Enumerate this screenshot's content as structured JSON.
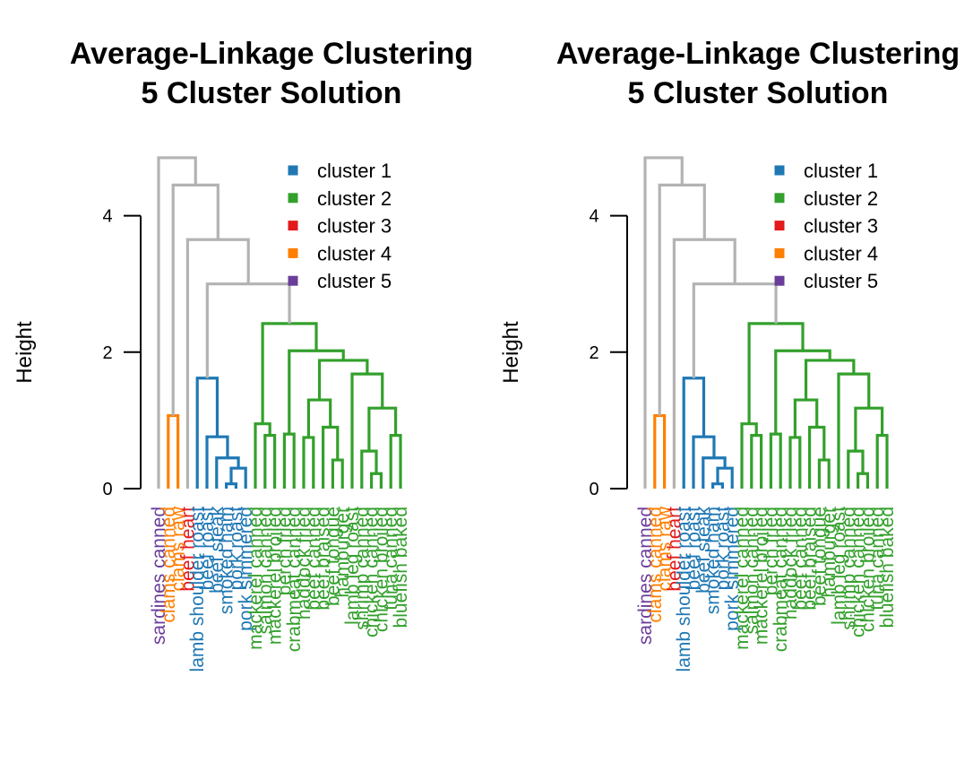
{
  "chart_data": [
    {
      "type": "dendrogram",
      "title": "Average-Linkage Clustering",
      "subtitle": "5 Cluster Solution",
      "ylabel": "Height",
      "yticks": [
        0,
        2,
        4
      ],
      "ylim": [
        0,
        4.8
      ],
      "legend_position": "top-right",
      "legend": [
        {
          "label": "cluster 1",
          "color": "#1F78B4"
        },
        {
          "label": "cluster 2",
          "color": "#33A02C"
        },
        {
          "label": "cluster 3",
          "color": "#E31A1C"
        },
        {
          "label": "cluster 4",
          "color": "#FF7F00"
        },
        {
          "label": "cluster 5",
          "color": "#6A3D9A"
        }
      ],
      "upper_branch_color": "#B3B3B3",
      "leaves": [
        {
          "label": "sardines canned",
          "cluster": 5
        },
        {
          "label": "clams canned",
          "cluster": 4
        },
        {
          "label": "clams raw",
          "cluster": 4
        },
        {
          "label": "beef heart",
          "cluster": 3
        },
        {
          "label": "lamb shoulder roast",
          "cluster": 1
        },
        {
          "label": "beef roast",
          "cluster": 1
        },
        {
          "label": "beef steak",
          "cluster": 1
        },
        {
          "label": "smoked ham",
          "cluster": 1
        },
        {
          "label": "pork roast",
          "cluster": 1
        },
        {
          "label": "pork simmered",
          "cluster": 1
        },
        {
          "label": "mackerel canned",
          "cluster": 2
        },
        {
          "label": "salmon canned",
          "cluster": 2
        },
        {
          "label": "mackerel broiled",
          "cluster": 2
        },
        {
          "label": "perch fried",
          "cluster": 2
        },
        {
          "label": "crabmeat canned",
          "cluster": 2
        },
        {
          "label": "haddock fried",
          "cluster": 2
        },
        {
          "label": "beef canned",
          "cluster": 2
        },
        {
          "label": "beef braised",
          "cluster": 2
        },
        {
          "label": "beef tongue",
          "cluster": 2
        },
        {
          "label": "hamburger",
          "cluster": 2
        },
        {
          "label": "lamb leg roast",
          "cluster": 2
        },
        {
          "label": "shrimp canned",
          "cluster": 2
        },
        {
          "label": "chicken canned",
          "cluster": 2
        },
        {
          "label": "chicken broiled",
          "cluster": 2
        },
        {
          "label": "tuna canned",
          "cluster": 2
        },
        {
          "label": "bluefish baked",
          "cluster": 2
        }
      ],
      "merges": [
        {
          "left": {
            "leaf": 7
          },
          "right": {
            "leaf": 8
          },
          "height": 0.07
        },
        {
          "left": {
            "merge": 0
          },
          "right": {
            "leaf": 9
          },
          "height": 0.3
        },
        {
          "left": {
            "leaf": 6
          },
          "right": {
            "merge": 1
          },
          "height": 0.45
        },
        {
          "left": {
            "leaf": 5
          },
          "right": {
            "merge": 2
          },
          "height": 0.76
        },
        {
          "left": {
            "leaf": 4
          },
          "right": {
            "merge": 3
          },
          "height": 1.62
        },
        {
          "left": {
            "leaf": 1
          },
          "right": {
            "leaf": 2
          },
          "height": 1.07
        },
        {
          "left": {
            "leaf": 22
          },
          "right": {
            "leaf": 23
          },
          "height": 0.22
        },
        {
          "left": {
            "leaf": 18
          },
          "right": {
            "leaf": 19
          },
          "height": 0.42
        },
        {
          "left": {
            "leaf": 24
          },
          "right": {
            "leaf": 25
          },
          "height": 0.78
        },
        {
          "left": {
            "leaf": 17
          },
          "right": {
            "merge": 7
          },
          "height": 0.9
        },
        {
          "left": {
            "leaf": 11
          },
          "right": {
            "leaf": 12
          },
          "height": 0.78
        },
        {
          "left": {
            "leaf": 13
          },
          "right": {
            "leaf": 14
          },
          "height": 0.8
        },
        {
          "left": {
            "leaf": 15
          },
          "right": {
            "leaf": 16
          },
          "height": 0.75
        },
        {
          "left": {
            "leaf": 10
          },
          "right": {
            "merge": 10
          },
          "height": 0.95
        },
        {
          "left": {
            "merge": 12
          },
          "right": {
            "merge": 9
          },
          "height": 1.3
        },
        {
          "left": {
            "leaf": 21
          },
          "right": {
            "merge": 6
          },
          "height": 0.55
        },
        {
          "left": {
            "merge": 8
          },
          "right": {
            "merge": 15
          },
          "height": 1.18
        },
        {
          "left": {
            "leaf": 20
          },
          "right": {
            "merge": 16
          },
          "height": 1.68
        },
        {
          "left": {
            "merge": 14
          },
          "right": {
            "merge": 17
          },
          "height": 1.88
        },
        {
          "left": {
            "merge": 11
          },
          "right": {
            "merge": 18
          },
          "height": 2.02
        },
        {
          "left": {
            "merge": 13
          },
          "right": {
            "merge": 19
          },
          "height": 2.42
        },
        {
          "left": {
            "merge": 4
          },
          "right": {
            "merge": 20
          },
          "height": 3.0
        },
        {
          "left": {
            "leaf": 3
          },
          "right": {
            "merge": 21
          },
          "height": 3.65
        },
        {
          "left": {
            "merge": 5
          },
          "right": {
            "merge": 22
          },
          "height": 4.45
        },
        {
          "left": {
            "leaf": 0
          },
          "right": {
            "merge": 23
          },
          "height": 4.85
        }
      ]
    },
    {
      "type": "dendrogram",
      "title": "Average-Linkage Clustering",
      "subtitle": "5 Cluster Solution",
      "ylabel": "Height",
      "yticks": [
        0,
        2,
        4
      ],
      "ylim": [
        0,
        4.8
      ],
      "legend_position": "top-right",
      "legend": [
        {
          "label": "cluster 1",
          "color": "#1F78B4"
        },
        {
          "label": "cluster 2",
          "color": "#33A02C"
        },
        {
          "label": "cluster 3",
          "color": "#E31A1C"
        },
        {
          "label": "cluster 4",
          "color": "#FF7F00"
        },
        {
          "label": "cluster 5",
          "color": "#6A3D9A"
        }
      ],
      "upper_branch_color": "#B3B3B3",
      "leaves": [
        {
          "label": "sardines canned",
          "cluster": 5
        },
        {
          "label": "clams canned",
          "cluster": 4
        },
        {
          "label": "clams raw",
          "cluster": 4
        },
        {
          "label": "beef heart",
          "cluster": 3
        },
        {
          "label": "lamb shoulder roast",
          "cluster": 1
        },
        {
          "label": "beef roast",
          "cluster": 1
        },
        {
          "label": "beef steak",
          "cluster": 1
        },
        {
          "label": "smoked ham",
          "cluster": 1
        },
        {
          "label": "pork roast",
          "cluster": 1
        },
        {
          "label": "pork simmered",
          "cluster": 1
        },
        {
          "label": "mackerel canned",
          "cluster": 2
        },
        {
          "label": "salmon canned",
          "cluster": 2
        },
        {
          "label": "mackerel broiled",
          "cluster": 2
        },
        {
          "label": "perch fried",
          "cluster": 2
        },
        {
          "label": "crabmeat canned",
          "cluster": 2
        },
        {
          "label": "haddock fried",
          "cluster": 2
        },
        {
          "label": "beef canned",
          "cluster": 2
        },
        {
          "label": "beef braised",
          "cluster": 2
        },
        {
          "label": "beef tongue",
          "cluster": 2
        },
        {
          "label": "hamburger",
          "cluster": 2
        },
        {
          "label": "lamb leg roast",
          "cluster": 2
        },
        {
          "label": "shrimp canned",
          "cluster": 2
        },
        {
          "label": "chicken canned",
          "cluster": 2
        },
        {
          "label": "chicken broiled",
          "cluster": 2
        },
        {
          "label": "tuna canned",
          "cluster": 2
        },
        {
          "label": "bluefish baked",
          "cluster": 2
        }
      ],
      "merges": [
        {
          "left": {
            "leaf": 7
          },
          "right": {
            "leaf": 8
          },
          "height": 0.07
        },
        {
          "left": {
            "merge": 0
          },
          "right": {
            "leaf": 9
          },
          "height": 0.3
        },
        {
          "left": {
            "leaf": 6
          },
          "right": {
            "merge": 1
          },
          "height": 0.45
        },
        {
          "left": {
            "leaf": 5
          },
          "right": {
            "merge": 2
          },
          "height": 0.76
        },
        {
          "left": {
            "leaf": 4
          },
          "right": {
            "merge": 3
          },
          "height": 1.62
        },
        {
          "left": {
            "leaf": 1
          },
          "right": {
            "leaf": 2
          },
          "height": 1.07
        },
        {
          "left": {
            "leaf": 22
          },
          "right": {
            "leaf": 23
          },
          "height": 0.22
        },
        {
          "left": {
            "leaf": 18
          },
          "right": {
            "leaf": 19
          },
          "height": 0.42
        },
        {
          "left": {
            "leaf": 24
          },
          "right": {
            "leaf": 25
          },
          "height": 0.78
        },
        {
          "left": {
            "leaf": 17
          },
          "right": {
            "merge": 7
          },
          "height": 0.9
        },
        {
          "left": {
            "leaf": 11
          },
          "right": {
            "leaf": 12
          },
          "height": 0.78
        },
        {
          "left": {
            "leaf": 13
          },
          "right": {
            "leaf": 14
          },
          "height": 0.8
        },
        {
          "left": {
            "leaf": 15
          },
          "right": {
            "leaf": 16
          },
          "height": 0.75
        },
        {
          "left": {
            "leaf": 10
          },
          "right": {
            "merge": 10
          },
          "height": 0.95
        },
        {
          "left": {
            "merge": 12
          },
          "right": {
            "merge": 9
          },
          "height": 1.3
        },
        {
          "left": {
            "leaf": 21
          },
          "right": {
            "merge": 6
          },
          "height": 0.55
        },
        {
          "left": {
            "merge": 8
          },
          "right": {
            "merge": 15
          },
          "height": 1.18
        },
        {
          "left": {
            "leaf": 20
          },
          "right": {
            "merge": 16
          },
          "height": 1.68
        },
        {
          "left": {
            "merge": 14
          },
          "right": {
            "merge": 17
          },
          "height": 1.88
        },
        {
          "left": {
            "merge": 11
          },
          "right": {
            "merge": 18
          },
          "height": 2.02
        },
        {
          "left": {
            "merge": 13
          },
          "right": {
            "merge": 19
          },
          "height": 2.42
        },
        {
          "left": {
            "merge": 4
          },
          "right": {
            "merge": 20
          },
          "height": 3.0
        },
        {
          "left": {
            "leaf": 3
          },
          "right": {
            "merge": 21
          },
          "height": 3.65
        },
        {
          "left": {
            "merge": 5
          },
          "right": {
            "merge": 22
          },
          "height": 4.45
        },
        {
          "left": {
            "leaf": 0
          },
          "right": {
            "merge": 23
          },
          "height": 4.85
        }
      ]
    }
  ]
}
